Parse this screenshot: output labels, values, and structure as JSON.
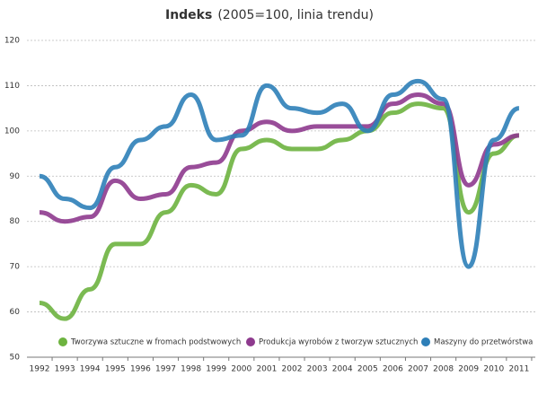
{
  "chart_data": {
    "type": "line",
    "title": "Indeks",
    "subtitle": "(2005=100, linia trendu)",
    "categories": [
      "1992",
      "1993",
      "1994",
      "1995",
      "1996",
      "1997",
      "1998",
      "1999",
      "2000",
      "2001",
      "2002",
      "2003",
      "2004",
      "2005",
      "2006",
      "2007",
      "2008",
      "2009",
      "2010",
      "2011"
    ],
    "series": [
      {
        "name": "Tworzywa sztuczne w fromach podstwowych",
        "color": "#6db33f",
        "values": [
          62,
          58.5,
          65,
          75,
          75,
          82,
          88,
          86,
          96,
          98,
          96,
          96,
          98,
          100,
          104,
          106,
          105,
          82,
          95,
          99
        ]
      },
      {
        "name": "Produkcja wyrobów z tworzyw sztucznych",
        "color": "#8e3a8e",
        "values": [
          82,
          80,
          81,
          89,
          85,
          86,
          92,
          93,
          100,
          102,
          100,
          101,
          101,
          101,
          106,
          108,
          106,
          88,
          97,
          99
        ]
      },
      {
        "name": "Maszyny do przetwórstwa",
        "color": "#2e7fb8",
        "values": [
          90,
          85,
          83,
          92,
          98,
          101,
          108,
          98,
          99,
          110,
          105,
          104,
          106,
          100,
          108,
          111,
          107,
          70,
          98,
          105
        ]
      }
    ],
    "ylim": [
      50,
      120
    ],
    "yticks": [
      50,
      60,
      70,
      80,
      90,
      100,
      110,
      120
    ],
    "grid": true,
    "legend": "bottom"
  }
}
